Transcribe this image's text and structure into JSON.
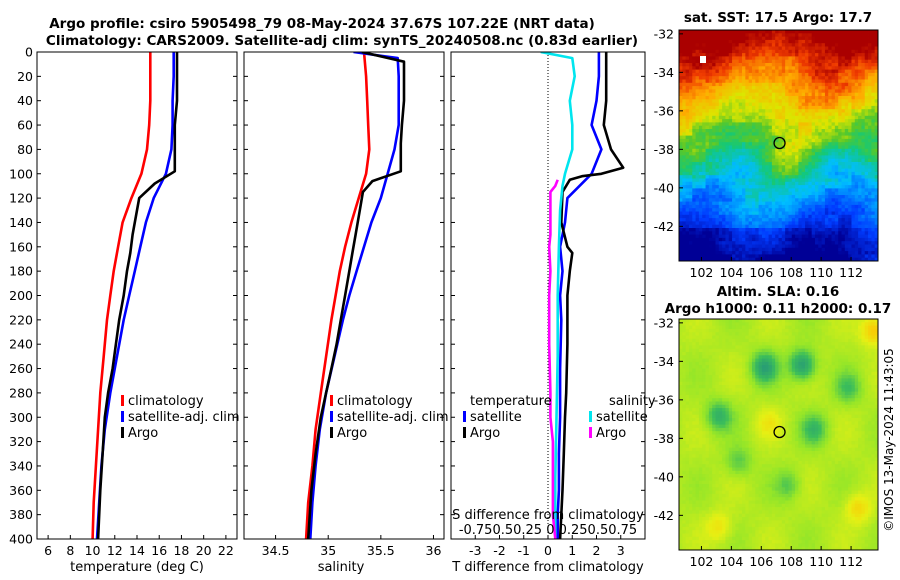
{
  "header": {
    "title_line1": "Argo profile: csiro 5905498_79 08-May-2024 37.67S 107.22E (NRT data)",
    "title_line2": "Climatology: CARS2009. Satellite-adj clim: synTS_20240508.nc (0.83d earlier)"
  },
  "colors": {
    "climatology": "#ff0000",
    "satellite": "#0000ff",
    "argo": "#000000",
    "sat_salinity": "#00e5ee",
    "clim_salinity": "#ff00ff"
  },
  "chart_data": [
    {
      "type": "line",
      "id": "temperature",
      "xlabel": "temperature (deg C)",
      "ylabel": "",
      "xlim": [
        5,
        23
      ],
      "ylim": [
        0,
        400
      ],
      "x_ticks": [
        6,
        8,
        10,
        12,
        14,
        16,
        18,
        20,
        22
      ],
      "y_ticks": [
        0,
        20,
        40,
        60,
        80,
        100,
        120,
        140,
        160,
        180,
        200,
        220,
        240,
        260,
        280,
        300,
        320,
        340,
        360,
        380,
        400
      ],
      "legend": {
        "position": "lower-right",
        "entries": [
          "climatology",
          "satellite-adj. clim",
          "Argo"
        ]
      },
      "series": [
        {
          "name": "climatology",
          "color": "#ff0000",
          "x": [
            15.2,
            15.2,
            15.2,
            15.1,
            14.9,
            14.4,
            13.5,
            12.7,
            12.3,
            11.9,
            11.6,
            11.3,
            11.0,
            10.7,
            10.5,
            10.3,
            10.1,
            10.0
          ],
          "y": [
            0,
            20,
            40,
            60,
            80,
            100,
            120,
            140,
            160,
            180,
            200,
            220,
            250,
            280,
            310,
            340,
            370,
            400
          ]
        },
        {
          "name": "satellite-adj. clim",
          "color": "#0000ff",
          "x": [
            17.3,
            17.3,
            17.2,
            17.2,
            17.1,
            16.6,
            15.5,
            14.8,
            14.3,
            13.8,
            13.3,
            12.8,
            12.2,
            11.6,
            11.1,
            10.8,
            10.6,
            10.4
          ],
          "y": [
            0,
            20,
            40,
            60,
            80,
            100,
            120,
            140,
            160,
            180,
            200,
            220,
            250,
            280,
            310,
            340,
            370,
            400
          ]
        },
        {
          "name": "Argo",
          "color": "#000000",
          "x": [
            17.6,
            17.6,
            17.6,
            17.4,
            17.4,
            17.4,
            15.6,
            14.2,
            13.9,
            13.6,
            13.4,
            13.1,
            12.8,
            12.4,
            12.1,
            11.8,
            11.4,
            11.1,
            10.9,
            10.7,
            10.5
          ],
          "y": [
            0,
            20,
            40,
            60,
            75,
            98,
            108,
            120,
            135,
            150,
            165,
            180,
            200,
            220,
            240,
            260,
            280,
            300,
            330,
            360,
            400
          ]
        }
      ]
    },
    {
      "type": "line",
      "id": "salinity",
      "xlabel": "salinity",
      "ylabel": "",
      "xlim": [
        34.2,
        36.1
      ],
      "ylim": [
        0,
        400
      ],
      "x_ticks": [
        34.5,
        35,
        35.5,
        36
      ],
      "legend": {
        "position": "lower-right",
        "entries": [
          "climatology",
          "satellite-adj. clim",
          "Argo"
        ]
      },
      "series": [
        {
          "name": "climatology",
          "color": "#ff0000",
          "x": [
            35.34,
            35.36,
            35.37,
            35.38,
            35.39,
            35.36,
            35.29,
            35.22,
            35.16,
            35.11,
            35.07,
            35.03,
            34.98,
            34.93,
            34.88,
            34.85,
            34.81,
            34.79
          ],
          "y": [
            0,
            20,
            40,
            60,
            80,
            100,
            120,
            140,
            160,
            180,
            200,
            220,
            250,
            280,
            310,
            340,
            370,
            400
          ]
        },
        {
          "name": "satellite-adj. clim",
          "color": "#0000ff",
          "x": [
            35.24,
            35.66,
            35.67,
            35.67,
            35.67,
            35.63,
            35.5,
            35.41,
            35.34,
            35.27,
            35.2,
            35.14,
            35.06,
            34.98,
            34.92,
            34.88,
            34.85,
            34.83
          ],
          "y": [
            0,
            5,
            20,
            40,
            60,
            80,
            120,
            140,
            160,
            180,
            200,
            220,
            250,
            280,
            310,
            340,
            370,
            400
          ]
        },
        {
          "name": "Argo",
          "color": "#000000",
          "x": [
            35.32,
            35.72,
            35.72,
            35.7,
            35.69,
            35.69,
            35.42,
            35.33,
            35.3,
            35.26,
            35.23,
            35.2,
            35.16,
            35.12,
            35.08,
            35.03,
            34.98,
            34.93,
            34.88,
            34.84,
            34.81
          ],
          "y": [
            0,
            8,
            40,
            60,
            75,
            98,
            106,
            115,
            130,
            150,
            165,
            180,
            200,
            220,
            240,
            260,
            280,
            300,
            330,
            360,
            400
          ]
        }
      ]
    },
    {
      "type": "line",
      "id": "differences",
      "xlabel": "T difference from climatology",
      "ylabel": "",
      "xlim": [
        -4,
        4
      ],
      "ylim": [
        0,
        400
      ],
      "x_ticks": [
        -3,
        -2,
        -1,
        0,
        1,
        2,
        3
      ],
      "s_axis_label": "S difference from climatology",
      "s_ticks_label": "-0.750.50.25 0 0.250.50.75",
      "legend": {
        "temperature_header": "temperature",
        "salinity_header": "salinity",
        "temperature_entries": [
          "satellite",
          "Argo"
        ],
        "salinity_entries": [
          "satellite",
          "Argo"
        ]
      },
      "series": [
        {
          "name": "T satellite",
          "color": "#0000ff",
          "x": [
            2.1,
            2.1,
            2.0,
            1.8,
            2.2,
            1.8,
            0.8,
            0.7,
            0.5,
            0.6,
            0.5,
            0.55,
            0.5,
            0.5,
            0.45,
            0.45,
            0.4,
            0.4
          ],
          "y": [
            0,
            20,
            40,
            60,
            80,
            100,
            120,
            140,
            160,
            180,
            200,
            220,
            260,
            300,
            330,
            360,
            380,
            400
          ]
        },
        {
          "name": "T Argo",
          "color": "#000000",
          "x": [
            2.4,
            2.4,
            2.4,
            2.3,
            2.6,
            3.1,
            2.2,
            1.4,
            0.9,
            0.6,
            0.55,
            0.8,
            1.0,
            0.9,
            0.8,
            0.8,
            0.75,
            0.7,
            0.65,
            0.6,
            0.5
          ],
          "y": [
            0,
            20,
            40,
            60,
            80,
            95,
            100,
            102,
            105,
            115,
            140,
            160,
            165,
            180,
            200,
            240,
            280,
            300,
            330,
            360,
            400
          ]
        },
        {
          "name": "S satellite",
          "color": "#00e5ee",
          "x": [
            -0.3,
            1.0,
            1.1,
            0.9,
            1.0,
            1.0,
            0.7,
            0.6,
            0.5,
            0.45,
            0.4,
            0.4,
            0.35,
            0.3,
            0.3,
            0.3
          ],
          "y": [
            0,
            5,
            20,
            40,
            60,
            80,
            100,
            110,
            130,
            160,
            200,
            250,
            300,
            350,
            380,
            400
          ]
        },
        {
          "name": "S Argo",
          "color": "#ff00ff",
          "x": [
            0.4,
            0.3,
            0.1,
            0.1,
            0.1,
            0.05,
            0.1,
            0.05,
            0.05,
            0.1,
            0.1,
            0.2,
            0.2,
            0.2,
            0.3
          ],
          "y": [
            105,
            110,
            115,
            130,
            150,
            160,
            180,
            200,
            240,
            280,
            300,
            320,
            350,
            380,
            400
          ]
        }
      ]
    },
    {
      "type": "heatmap",
      "id": "sst_map",
      "title": "sat. SST: 17.5 Argo: 17.7",
      "xlim": [
        100.5,
        113.8
      ],
      "ylim": [
        -43.8,
        -31.8
      ],
      "x_ticks": [
        102,
        104,
        106,
        108,
        110,
        112
      ],
      "y_ticks": [
        -32,
        -34,
        -36,
        -38,
        -40,
        -42
      ],
      "marker": {
        "lon": 107.22,
        "lat": -37.67
      }
    },
    {
      "type": "heatmap",
      "id": "sla_map",
      "title": "Altim. SLA: 0.16",
      "subtitle": "Argo h1000: 0.11 h2000: 0.17",
      "xlim": [
        100.5,
        113.8
      ],
      "ylim": [
        -43.8,
        -31.8
      ],
      "x_ticks": [
        102,
        104,
        106,
        108,
        110,
        112
      ],
      "y_ticks": [
        -32,
        -34,
        -36,
        -38,
        -40,
        -42
      ],
      "marker": {
        "lon": 107.22,
        "lat": -37.67
      }
    }
  ],
  "watermark": "©IMOS 13-May-2024 11:43:05"
}
